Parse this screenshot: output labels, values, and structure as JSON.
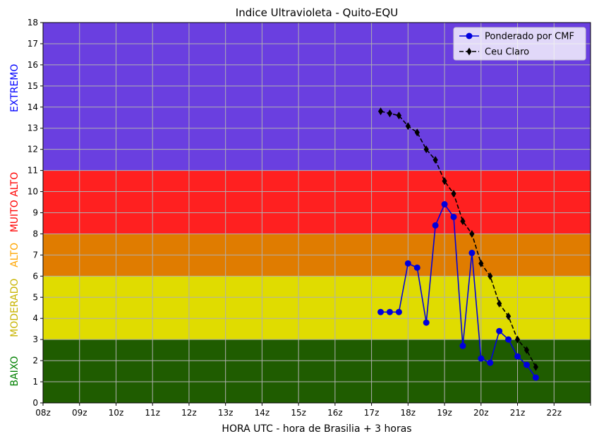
{
  "chart_data": {
    "type": "line",
    "title": "Indice Ultravioleta - Quito-EQU",
    "xlabel": "HORA UTC - hora de Brasilia + 3 horas",
    "ylabel": "",
    "xlim": [
      8,
      23
    ],
    "ylim": [
      0,
      18
    ],
    "grid": true,
    "legend_position": "top-right",
    "x_ticks": [
      8,
      9,
      10,
      11,
      12,
      13,
      14,
      15,
      16,
      17,
      18,
      19,
      20,
      21,
      22,
      23
    ],
    "x_tick_labels": [
      "08z",
      "09z",
      "10z",
      "11z",
      "12z",
      "13z",
      "14z",
      "15z",
      "16z",
      "17z",
      "18z",
      "19z",
      "20z",
      "21z",
      "22z",
      ""
    ],
    "y_ticks": [
      0,
      1,
      2,
      3,
      4,
      5,
      6,
      7,
      8,
      9,
      10,
      11,
      12,
      13,
      14,
      15,
      16,
      17,
      18
    ],
    "bands": [
      {
        "label": "BAIXO",
        "from": 0,
        "to": 3,
        "color": "#1f5c00",
        "label_color": "#008000"
      },
      {
        "label": "MODERADO",
        "from": 3,
        "to": 6,
        "color": "#e0dc00",
        "label_color": "#c8b400"
      },
      {
        "label": "ALTO",
        "from": 6,
        "to": 8,
        "color": "#e07c00",
        "label_color": "#ffa500"
      },
      {
        "label": "MUITO ALTO",
        "from": 8,
        "to": 11,
        "color": "#ff2020",
        "label_color": "#ff0000"
      },
      {
        "label": "EXTREMO",
        "from": 11,
        "to": 18,
        "color": "#6a3fe0",
        "label_color": "#0000ff"
      }
    ],
    "series": [
      {
        "name": "Ponderado por CMF",
        "color": "#0000dd",
        "marker": "circle",
        "linestyle": "solid",
        "x": [
          17.25,
          17.5,
          17.75,
          18.0,
          18.25,
          18.5,
          18.75,
          19.0,
          19.25,
          19.5,
          19.75,
          20.0,
          20.25,
          20.5,
          20.75,
          21.0,
          21.25,
          21.5
        ],
        "values": [
          4.3,
          4.3,
          4.3,
          6.6,
          6.4,
          3.8,
          8.4,
          9.4,
          8.8,
          2.7,
          7.1,
          2.1,
          1.9,
          3.4,
          3.0,
          2.2,
          1.8,
          1.2
        ]
      },
      {
        "name": "Ceu Claro",
        "color": "#000000",
        "marker": "diamond",
        "linestyle": "dashed",
        "x": [
          17.25,
          17.5,
          17.75,
          18.0,
          18.25,
          18.5,
          18.75,
          19.0,
          19.25,
          19.5,
          19.75,
          20.0,
          20.25,
          20.5,
          20.75,
          21.0,
          21.25,
          21.5
        ],
        "values": [
          13.8,
          13.7,
          13.6,
          13.1,
          12.8,
          12.0,
          11.5,
          10.5,
          9.9,
          8.6,
          8.0,
          6.6,
          6.0,
          4.7,
          4.1,
          3.0,
          2.5,
          1.7
        ]
      }
    ]
  }
}
